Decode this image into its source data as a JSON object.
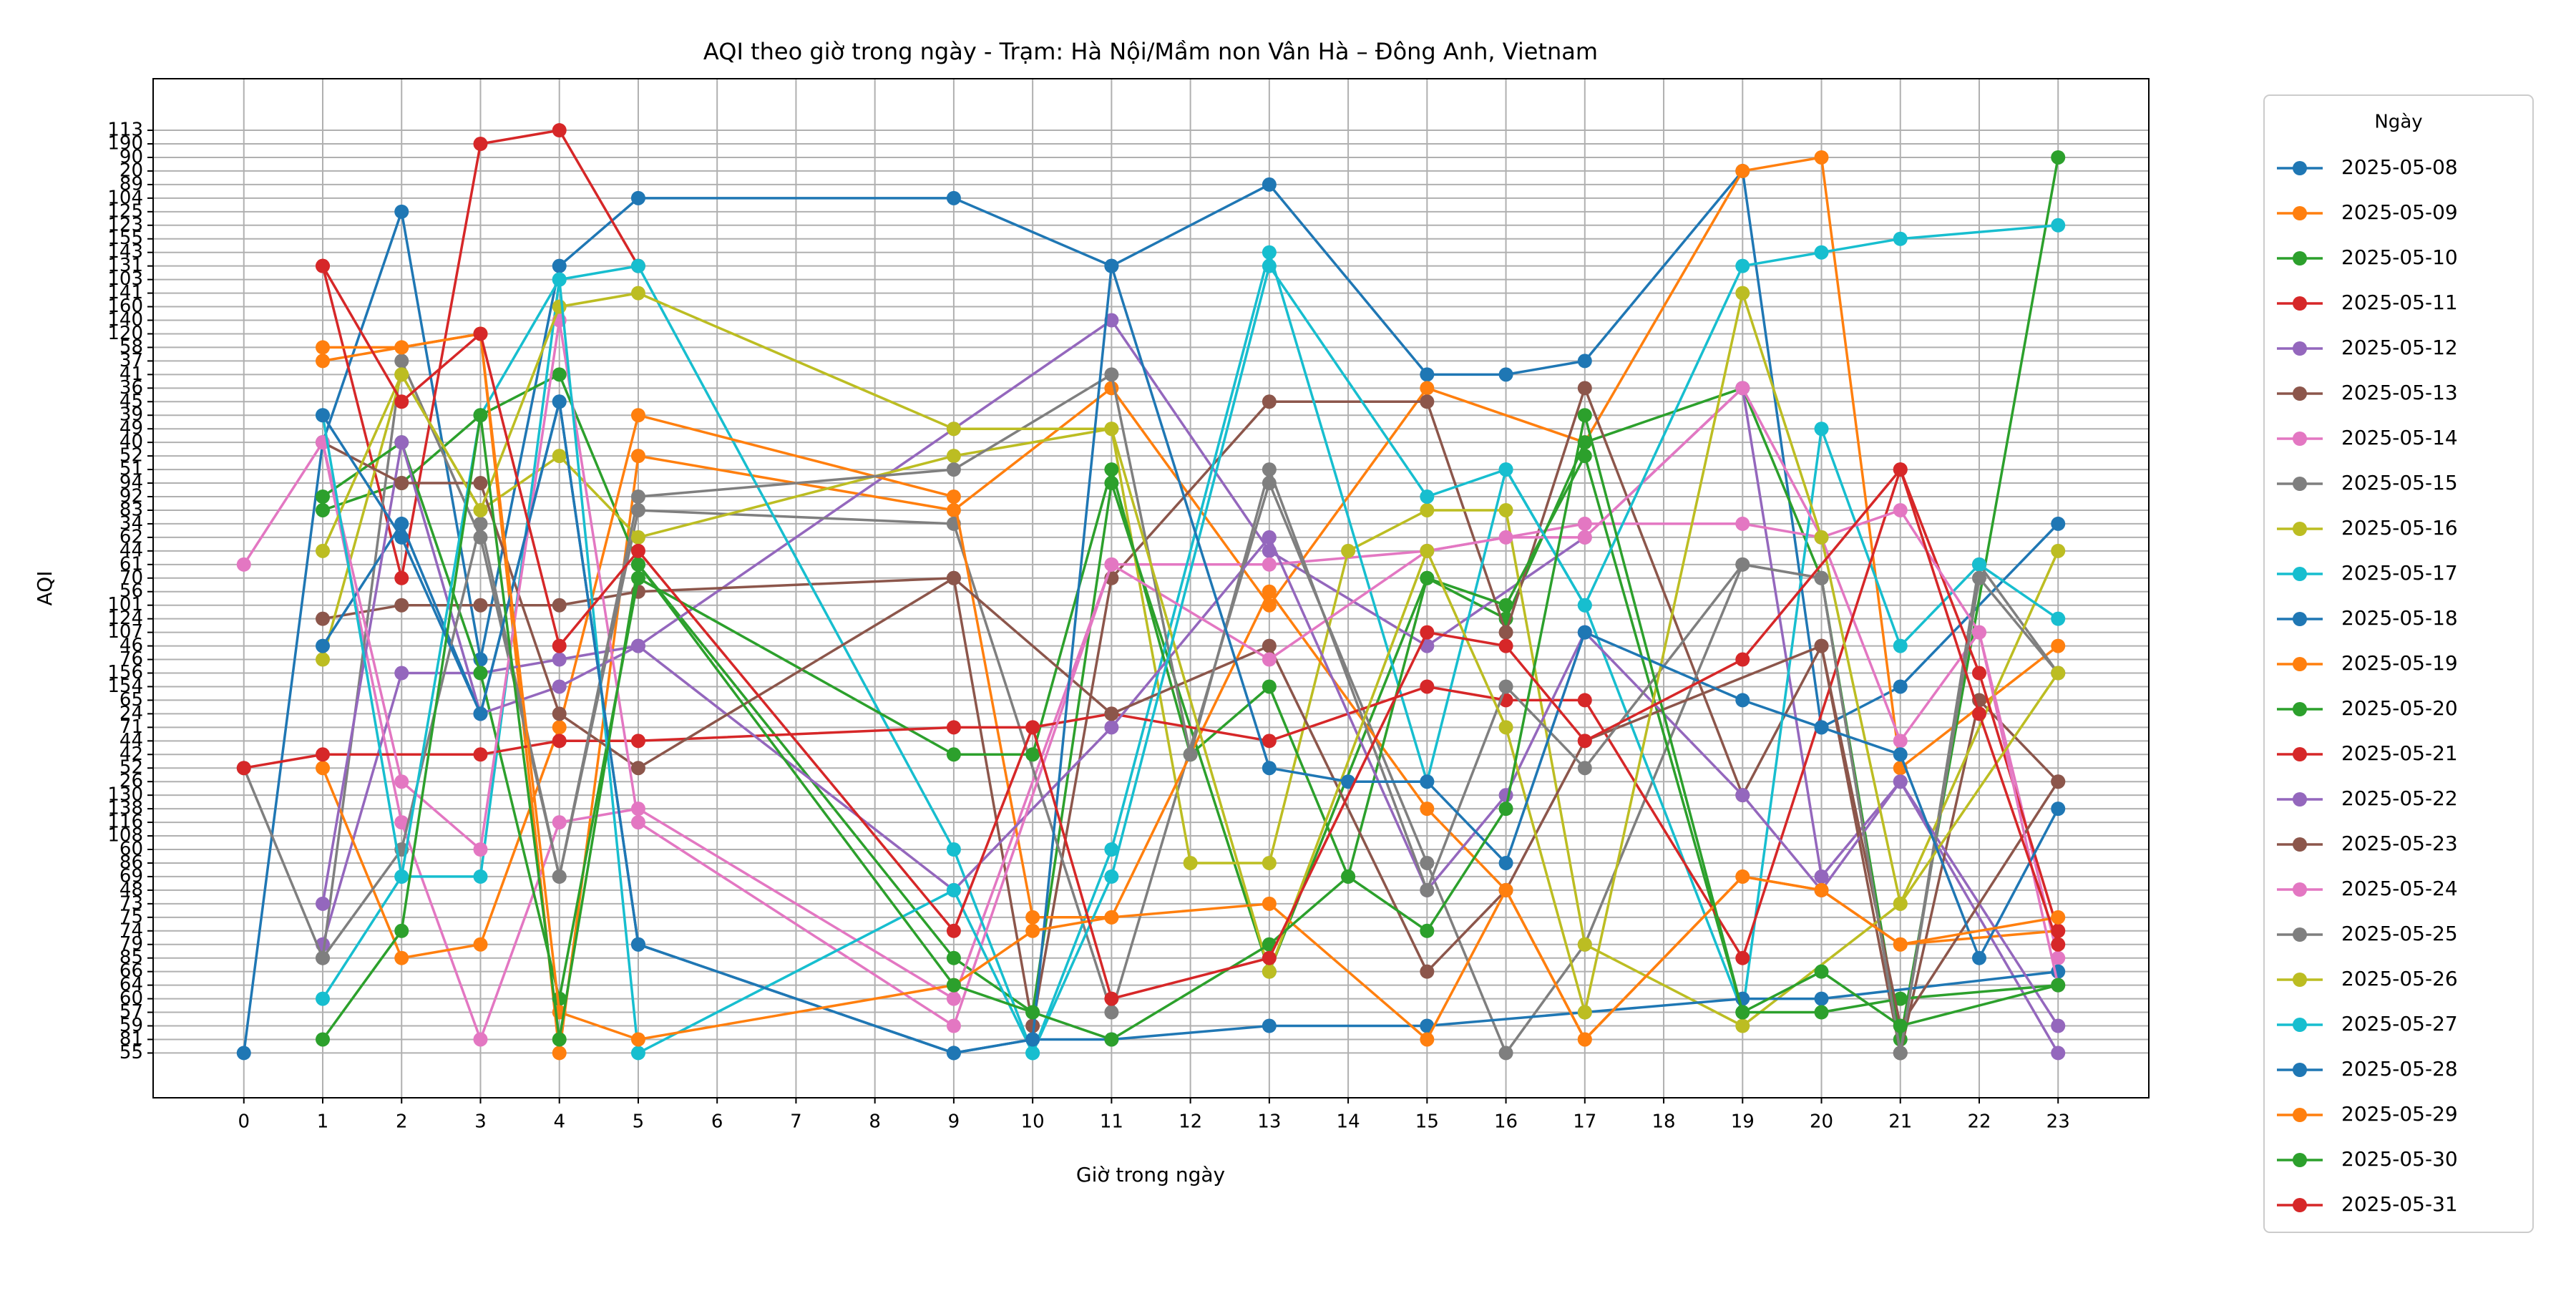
{
  "chart_data": {
    "type": "line",
    "title": "AQI theo giờ trong ngày - Trạm: Hà Nội/Mầm non Vân Hà – Đông Anh, Vietnam",
    "x_label": "Giờ trong ngày",
    "y_label": "AQI",
    "legend_title": "Ngày",
    "legend": "outside right",
    "grid": true,
    "xlim": [
      -1.15,
      24.15
    ],
    "xticks": [
      0,
      1,
      2,
      3,
      4,
      5,
      6,
      7,
      8,
      9,
      10,
      11,
      12,
      13,
      14,
      15,
      16,
      17,
      18,
      19,
      20,
      21,
      22,
      23
    ],
    "ylim": [
      -3.3,
      71.8
    ],
    "yticks": [
      {
        "value": 0,
        "label": "55"
      },
      {
        "value": 1,
        "label": "81"
      },
      {
        "value": 2,
        "label": "59"
      },
      {
        "value": 3,
        "label": "57"
      },
      {
        "value": 4,
        "label": "60"
      },
      {
        "value": 5,
        "label": "64"
      },
      {
        "value": 6,
        "label": "66"
      },
      {
        "value": 7,
        "label": "85"
      },
      {
        "value": 8,
        "label": "79"
      },
      {
        "value": 9,
        "label": "74"
      },
      {
        "value": 10,
        "label": "75"
      },
      {
        "value": 11,
        "label": "73"
      },
      {
        "value": 12,
        "label": "48"
      },
      {
        "value": 13,
        "label": "69"
      },
      {
        "value": 14,
        "label": "86"
      },
      {
        "value": 15,
        "label": "60"
      },
      {
        "value": 16,
        "label": "108"
      },
      {
        "value": 17,
        "label": "116"
      },
      {
        "value": 18,
        "label": "138"
      },
      {
        "value": 19,
        "label": "130"
      },
      {
        "value": 20,
        "label": "26"
      },
      {
        "value": 21,
        "label": "52"
      },
      {
        "value": 22,
        "label": "42"
      },
      {
        "value": 23,
        "label": "44"
      },
      {
        "value": 24,
        "label": "71"
      },
      {
        "value": 25,
        "label": "24"
      },
      {
        "value": 26,
        "label": "65"
      },
      {
        "value": 27,
        "label": "154"
      },
      {
        "value": 28,
        "label": "156"
      },
      {
        "value": 29,
        "label": "76"
      },
      {
        "value": 30,
        "label": "46"
      },
      {
        "value": 31,
        "label": "107"
      },
      {
        "value": 32,
        "label": "124"
      },
      {
        "value": 33,
        "label": "101"
      },
      {
        "value": 34,
        "label": "56"
      },
      {
        "value": 35,
        "label": "70"
      },
      {
        "value": 36,
        "label": "61"
      },
      {
        "value": 37,
        "label": "44"
      },
      {
        "value": 38,
        "label": "62"
      },
      {
        "value": 39,
        "label": "34"
      },
      {
        "value": 40,
        "label": "83"
      },
      {
        "value": 41,
        "label": "92"
      },
      {
        "value": 42,
        "label": "94"
      },
      {
        "value": 43,
        "label": "51"
      },
      {
        "value": 44,
        "label": "52"
      },
      {
        "value": 45,
        "label": "40"
      },
      {
        "value": 46,
        "label": "49"
      },
      {
        "value": 47,
        "label": "39"
      },
      {
        "value": 48,
        "label": "45"
      },
      {
        "value": 49,
        "label": "36"
      },
      {
        "value": 50,
        "label": "41"
      },
      {
        "value": 51,
        "label": "37"
      },
      {
        "value": 52,
        "label": "58"
      },
      {
        "value": 53,
        "label": "120"
      },
      {
        "value": 54,
        "label": "140"
      },
      {
        "value": 55,
        "label": "160"
      },
      {
        "value": 56,
        "label": "141"
      },
      {
        "value": 57,
        "label": "103"
      },
      {
        "value": 58,
        "label": "131"
      },
      {
        "value": 59,
        "label": "143"
      },
      {
        "value": 60,
        "label": "155"
      },
      {
        "value": 61,
        "label": "123"
      },
      {
        "value": 62,
        "label": "125"
      },
      {
        "value": 63,
        "label": "104"
      },
      {
        "value": 64,
        "label": "89"
      },
      {
        "value": 65,
        "label": "20"
      },
      {
        "value": 66,
        "label": "90"
      },
      {
        "value": 67,
        "label": "190"
      },
      {
        "value": 68,
        "label": "113"
      }
    ],
    "series": [
      {
        "name": "2025-05-08",
        "color": "#1f77b4",
        "x": [
          0,
          1,
          2,
          3,
          4,
          5,
          9,
          11,
          13,
          15,
          16,
          17,
          19,
          20,
          21,
          23
        ],
        "values": [
          0,
          45,
          62,
          29,
          58,
          63,
          63,
          58,
          64,
          50,
          50,
          51,
          65,
          24,
          27,
          39
        ]
      },
      {
        "name": "2025-05-09",
        "color": "#ff7f0e",
        "x": [
          1,
          2,
          3,
          4,
          5,
          9,
          11,
          13,
          15,
          17,
          19,
          20,
          21,
          23
        ],
        "values": [
          51,
          52,
          53,
          0,
          44,
          40,
          49,
          33,
          49,
          45,
          65,
          66,
          21,
          30
        ]
      },
      {
        "name": "2025-05-10",
        "color": "#2ca02c",
        "x": [
          1,
          2,
          3,
          4,
          5,
          9,
          10,
          11,
          13,
          15,
          16,
          17,
          19,
          20,
          21,
          23
        ],
        "values": [
          40,
          42,
          47,
          50,
          36,
          7,
          3,
          42,
          6,
          35,
          32,
          45,
          49,
          35,
          1,
          66
        ]
      },
      {
        "name": "2025-05-11",
        "color": "#d62728",
        "x": [
          1,
          2,
          3,
          4,
          5
        ],
        "values": [
          58,
          35,
          67,
          68,
          58
        ]
      },
      {
        "name": "2025-05-12",
        "color": "#9467bd",
        "x": [
          1,
          2,
          3,
          4,
          5,
          9,
          11,
          13,
          15,
          17,
          19,
          20,
          21,
          23
        ],
        "values": [
          8,
          28,
          28,
          29,
          30,
          46,
          54,
          37,
          30,
          38,
          49,
          13,
          20,
          0
        ]
      },
      {
        "name": "2025-05-13",
        "color": "#8c564b",
        "x": [
          1,
          2,
          3,
          4,
          5,
          9,
          10,
          11,
          13,
          15,
          16,
          17,
          19,
          20,
          21,
          22,
          23
        ],
        "values": [
          32,
          33,
          33,
          33,
          34,
          35,
          2,
          35,
          48,
          48,
          31,
          49,
          19,
          30,
          0,
          26,
          20
        ]
      },
      {
        "name": "2025-05-14",
        "color": "#e377c2",
        "x": [
          0,
          1,
          2,
          3,
          4,
          5,
          9,
          11,
          13,
          15,
          17,
          19,
          20,
          21,
          22,
          23
        ],
        "values": [
          36,
          45,
          17,
          1,
          17,
          18,
          4,
          36,
          36,
          37,
          39,
          39,
          38,
          23,
          31,
          7
        ]
      },
      {
        "name": "2025-05-15",
        "color": "#7f7f7f",
        "x": [
          0,
          1,
          2,
          3,
          4,
          5,
          9,
          11,
          13,
          15,
          16,
          17,
          19,
          20,
          21,
          22,
          23
        ],
        "values": [
          21,
          7,
          51,
          38,
          13,
          40,
          39,
          3,
          42,
          14,
          0,
          8,
          36,
          35,
          0,
          36,
          28
        ]
      },
      {
        "name": "2025-05-16",
        "color": "#bcbd22",
        "x": [
          1,
          2,
          3,
          4,
          5,
          9,
          11,
          12,
          13,
          14,
          15,
          16,
          17,
          19,
          21,
          23
        ],
        "values": [
          29,
          50,
          40,
          44,
          38,
          44,
          46,
          14,
          14,
          37,
          40,
          40,
          8,
          2,
          11,
          37
        ]
      },
      {
        "name": "2025-05-17",
        "color": "#17becf",
        "x": [
          1,
          2,
          3,
          4,
          5,
          9,
          10,
          11,
          13,
          15,
          16,
          17,
          19,
          20,
          21,
          22,
          23
        ],
        "values": [
          4,
          13,
          13,
          57,
          58,
          15,
          0,
          15,
          59,
          20,
          43,
          33,
          3,
          46,
          30,
          36,
          32
        ]
      },
      {
        "name": "2025-05-18",
        "color": "#1f77b4",
        "x": [
          1,
          2,
          3,
          4,
          5,
          9,
          10,
          11,
          13,
          15,
          17,
          19,
          20,
          23
        ],
        "values": [
          30,
          39,
          25,
          48,
          8,
          0,
          1,
          1,
          2,
          2,
          3,
          4,
          4,
          6
        ]
      },
      {
        "name": "2025-05-19",
        "color": "#ff7f0e",
        "x": [
          1,
          2,
          3,
          4,
          5,
          9,
          10,
          11,
          13,
          15,
          16,
          17,
          19,
          20,
          21,
          23
        ],
        "values": [
          21,
          7,
          8,
          24,
          47,
          41,
          10,
          10,
          34,
          18,
          12,
          1,
          13,
          12,
          8,
          9
        ]
      },
      {
        "name": "2025-05-20",
        "color": "#2ca02c",
        "x": [
          1,
          2,
          3,
          4,
          5,
          9,
          10,
          11,
          12,
          13,
          14,
          15,
          16,
          17,
          19,
          20,
          21,
          23
        ],
        "values": [
          41,
          45,
          28,
          4,
          35,
          22,
          22,
          43,
          22,
          27,
          13,
          35,
          33,
          44,
          3,
          3,
          4,
          5
        ]
      },
      {
        "name": "2025-05-21",
        "color": "#d62728",
        "x": [
          0,
          1,
          3,
          4,
          5,
          9,
          10,
          11,
          13,
          15,
          16,
          17,
          19,
          21,
          22,
          23
        ],
        "values": [
          21,
          22,
          22,
          23,
          23,
          24,
          24,
          25,
          23,
          27,
          26,
          26,
          7,
          43,
          28,
          9
        ]
      },
      {
        "name": "2025-05-22",
        "color": "#9467bd",
        "x": [
          1,
          2,
          3,
          4,
          5,
          9,
          11,
          13,
          15,
          16,
          17,
          19,
          20,
          21,
          23
        ],
        "values": [
          11,
          45,
          25,
          27,
          30,
          12,
          24,
          38,
          12,
          19,
          31,
          19,
          12,
          20,
          2
        ]
      },
      {
        "name": "2025-05-23",
        "color": "#8c564b",
        "x": [
          1,
          2,
          3,
          4,
          5,
          9,
          11,
          13,
          15,
          16,
          17,
          20,
          21,
          23
        ],
        "values": [
          45,
          42,
          42,
          25,
          21,
          35,
          25,
          30,
          6,
          12,
          23,
          30,
          2,
          20
        ]
      },
      {
        "name": "2025-05-24",
        "color": "#e377c2",
        "x": [
          1,
          2,
          3,
          4,
          5,
          9,
          11,
          13,
          15,
          16,
          17,
          19,
          20,
          21,
          22,
          23
        ],
        "values": [
          45,
          20,
          15,
          54,
          17,
          2,
          36,
          29,
          37,
          38,
          38,
          49,
          38,
          40,
          31,
          5
        ]
      },
      {
        "name": "2025-05-25",
        "color": "#7f7f7f",
        "x": [
          1,
          2,
          3,
          4,
          5,
          9,
          11,
          12,
          13,
          15,
          16,
          17,
          19,
          20,
          21,
          22,
          23
        ],
        "values": [
          7,
          15,
          39,
          13,
          41,
          43,
          50,
          22,
          43,
          12,
          27,
          21,
          36,
          35,
          0,
          35,
          28
        ]
      },
      {
        "name": "2025-05-26",
        "color": "#bcbd22",
        "x": [
          1,
          2,
          3,
          4,
          5,
          9,
          11,
          13,
          15,
          16,
          17,
          19,
          20,
          21,
          23
        ],
        "values": [
          37,
          50,
          40,
          55,
          56,
          46,
          46,
          6,
          37,
          24,
          3,
          56,
          38,
          11,
          28
        ]
      },
      {
        "name": "2025-05-27",
        "color": "#17becf",
        "x": [
          1,
          2,
          3,
          4,
          5,
          9,
          10,
          11,
          13,
          15,
          16,
          17,
          19,
          20,
          21,
          23
        ],
        "values": [
          47,
          13,
          47,
          57,
          0,
          12,
          0,
          13,
          58,
          41,
          43,
          33,
          58,
          59,
          60,
          61
        ]
      },
      {
        "name": "2025-05-28",
        "color": "#1f77b4",
        "x": [
          1,
          2,
          3,
          4,
          5,
          9,
          10,
          11,
          13,
          14,
          15,
          16,
          17,
          19,
          20,
          21,
          22,
          23
        ],
        "values": [
          47,
          38,
          25,
          48,
          8,
          0,
          1,
          58,
          21,
          20,
          20,
          14,
          31,
          26,
          24,
          22,
          7,
          18
        ]
      },
      {
        "name": "2025-05-29",
        "color": "#ff7f0e",
        "x": [
          1,
          2,
          3,
          4,
          5,
          9,
          10,
          11,
          13,
          15,
          16,
          17,
          19,
          20,
          21,
          23
        ],
        "values": [
          52,
          52,
          53,
          3,
          1,
          5,
          9,
          10,
          11,
          1,
          12,
          1,
          13,
          12,
          8,
          10
        ]
      },
      {
        "name": "2025-05-30",
        "color": "#2ca02c",
        "x": [
          1,
          2,
          3,
          4,
          5,
          9,
          10,
          11,
          13,
          14,
          15,
          16,
          17,
          19,
          20,
          21,
          23
        ],
        "values": [
          1,
          9,
          47,
          1,
          36,
          5,
          3,
          1,
          8,
          13,
          9,
          18,
          47,
          3,
          6,
          2,
          5
        ]
      },
      {
        "name": "2025-05-31",
        "color": "#d62728",
        "x": [
          1,
          2,
          3,
          4,
          5,
          9,
          10,
          11,
          13,
          15,
          16,
          17,
          19,
          21,
          22,
          23
        ],
        "values": [
          58,
          48,
          53,
          30,
          37,
          9,
          24,
          4,
          7,
          31,
          30,
          23,
          29,
          43,
          25,
          8
        ]
      }
    ]
  }
}
